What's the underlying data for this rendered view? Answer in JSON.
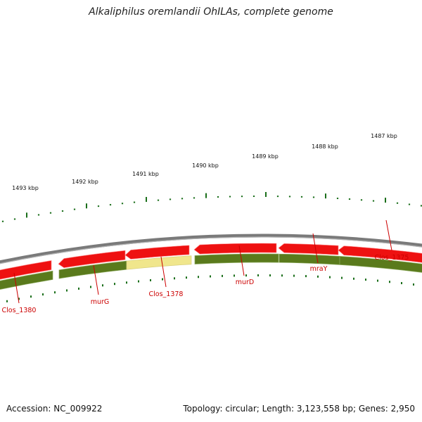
{
  "title": "Alkaliphilus oremlandii OhILAs, complete genome",
  "footer": {
    "accession": "Accession: NC_009922",
    "summary": "Topology: circular; Length: 3,123,558 bp; Genes: 2,950"
  },
  "colors": {
    "backbone": "#7a7a7a",
    "cds": "#ee1111",
    "gene": "#5a7a1c",
    "gene_highlight": "#f0e68c",
    "label": "#cc0000",
    "tick": "#1a6e1a"
  },
  "scale_labels": [
    "1487 kbp",
    "1488 kbp",
    "1489 kbp",
    "1490 kbp",
    "1491 kbp",
    "1492 kbp",
    "1493 kbp"
  ],
  "genes": [
    "Clos_1375",
    "mraY",
    "murD",
    "Clos_1378",
    "murG",
    "Clos_1380"
  ]
}
